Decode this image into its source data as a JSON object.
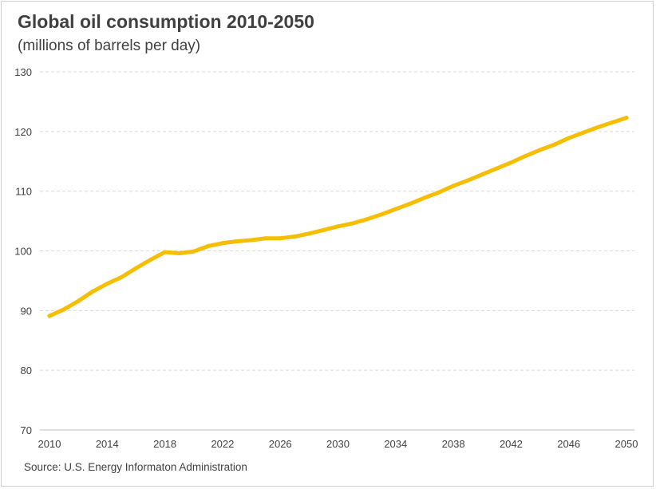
{
  "chart_data": {
    "type": "line",
    "title": "Global oil consumption 2010-2050",
    "subtitle": "(millions of barrels per day)",
    "source": "Source:  U.S. Energy Informaton  Administration",
    "xlabel": "",
    "ylabel": "",
    "x_ticks": [
      "2010",
      "2014",
      "2018",
      "2022",
      "2026",
      "2030",
      "2034",
      "2038",
      "2042",
      "2046",
      "2050"
    ],
    "y_ticks": [
      "70",
      "80",
      "90",
      "100",
      "110",
      "120",
      "130"
    ],
    "xlim": [
      2010,
      2050
    ],
    "ylim": [
      70,
      130
    ],
    "grid": "horizontal dashed",
    "legend": "none",
    "series": [
      {
        "color": "#F5BE00",
        "x": [
          2010,
          2011,
          2012,
          2013,
          2014,
          2015,
          2016,
          2017,
          2018,
          2019,
          2020,
          2021,
          2022,
          2023,
          2024,
          2025,
          2026,
          2027,
          2028,
          2029,
          2030,
          2031,
          2032,
          2033,
          2034,
          2035,
          2036,
          2037,
          2038,
          2039,
          2040,
          2041,
          2042,
          2043,
          2044,
          2045,
          2046,
          2047,
          2048,
          2049,
          2050
        ],
        "values": [
          89.1,
          90.2,
          91.6,
          93.2,
          94.5,
          95.6,
          97.1,
          98.5,
          99.8,
          99.6,
          99.9,
          100.8,
          101.3,
          101.6,
          101.8,
          102.1,
          102.1,
          102.4,
          102.9,
          103.5,
          104.1,
          104.6,
          105.3,
          106.1,
          107.0,
          107.9,
          108.9,
          109.8,
          110.9,
          111.8,
          112.8,
          113.8,
          114.8,
          115.9,
          116.9,
          117.8,
          118.9,
          119.8,
          120.7,
          121.5,
          122.3
        ]
      }
    ]
  }
}
